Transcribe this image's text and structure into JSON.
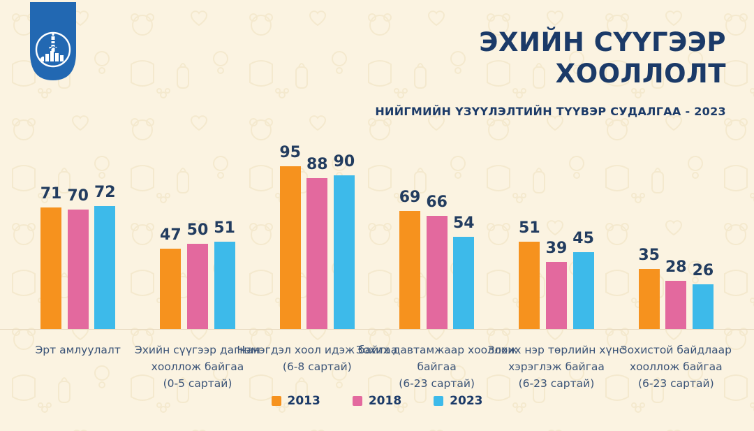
{
  "page": {
    "background_color": "#FBF3E1",
    "pattern_color": "#F0E1BF",
    "baseline_color": "#E8DAC0"
  },
  "logo": {
    "name": "national-statistics-office-emblem",
    "color": "#2268B2"
  },
  "header": {
    "title_lines": [
      "ЭХИЙН СҮҮГЭЭР",
      "ХООЛЛОЛТ"
    ],
    "title_color": "#1B3A68",
    "subtitle": "НИЙГМИЙН ҮЗҮҮЛЭЛТИЙН ТҮҮВЭР СУДАЛГАА - 2023"
  },
  "chart_data": {
    "type": "bar",
    "title": "ЭХИЙН СҮҮГЭЭР ХООЛЛОЛТ",
    "subtitle": "НИЙГМИЙН ҮЗҮҮЛЭЛТИЙН ТҮҮВЭР СУДАЛГАА - 2023",
    "categories": [
      "Эрт амлуулалт",
      "Эхийн сүүгээр дагнан\nхооллож байгаа\n(0-5 сартай)",
      "Нэмэгдэл хоол идэж байгаа\n(6-8 сартай)",
      "Зохих давтамжаар хооллож\nбайгаа\n(6-23 сартай)",
      "Зохих нэр төрлийн хүнс\nхэрэглэж байгаа\n(6-23 сартай)",
      "Зохистой байдлаар\nхооллож байгаа\n(6-23 сартай)"
    ],
    "series": [
      {
        "name": "2013",
        "color": "#F6921E",
        "values": [
          71,
          47,
          95,
          69,
          51,
          35
        ]
      },
      {
        "name": "2018",
        "color": "#E3699E",
        "values": [
          70,
          50,
          88,
          66,
          39,
          28
        ]
      },
      {
        "name": "2023",
        "color": "#3DBAEA",
        "values": [
          72,
          51,
          90,
          54,
          45,
          26
        ]
      }
    ],
    "ylim": [
      0,
      100
    ],
    "grid": false,
    "value_labels": true,
    "legend_position": "bottom",
    "value_label_color": "#223C5F",
    "category_label_color": "#3A5377"
  },
  "legend": {
    "items": [
      {
        "label": "2013",
        "color": "#F6921E"
      },
      {
        "label": "2018",
        "color": "#E3699E"
      },
      {
        "label": "2023",
        "color": "#3DBAEA"
      }
    ]
  }
}
